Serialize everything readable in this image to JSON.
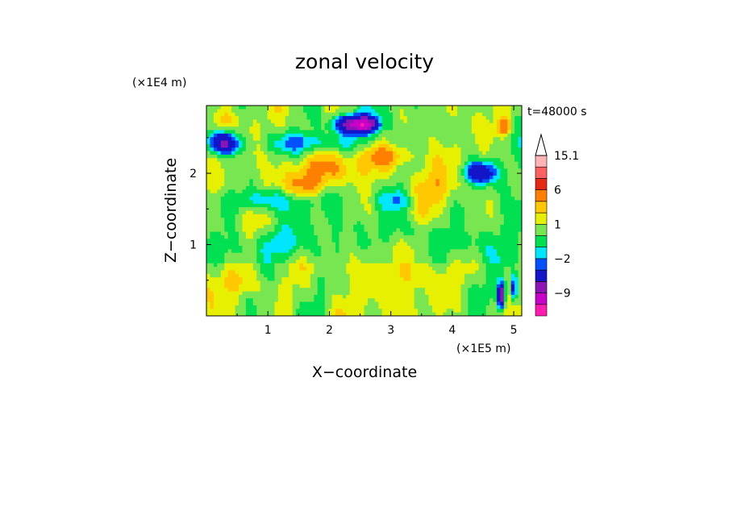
{
  "chart_data": {
    "type": "heatmap",
    "title": "zonal velocity",
    "xlabel": "X−coordinate",
    "ylabel": "Z−coordinate",
    "x_unit_label": "(×1E5 m)",
    "y_unit_label": "(×1E4 m)",
    "time_label": "t=48000 s",
    "xlim": [
      0,
      5.13
    ],
    "ylim": [
      0,
      2.95
    ],
    "x_ticks": [
      "1",
      "2",
      "3",
      "4",
      "5"
    ],
    "x_tick_values": [
      1,
      2,
      3,
      4,
      5
    ],
    "y_ticks": [
      "1",
      "2"
    ],
    "y_tick_values": [
      1,
      2
    ],
    "colorbar": {
      "levels": [
        -15,
        -12,
        -9,
        -6,
        -3,
        -2,
        -1,
        0,
        1,
        2,
        3,
        6,
        9,
        12,
        15.1
      ],
      "labels": [
        {
          "text": "15.1",
          "value": 15.1
        },
        {
          "text": "6",
          "value": 6
        },
        {
          "text": "1",
          "value": 1
        },
        {
          "text": "−2",
          "value": -2
        },
        {
          "text": "−9",
          "value": -9
        }
      ],
      "colors": [
        "#ff1ab0",
        "#c800c8",
        "#8c14b4",
        "#1414c8",
        "#0050ff",
        "#00e6ff",
        "#00e050",
        "#78e650",
        "#e6f000",
        "#ffc800",
        "#ff8000",
        "#e62814",
        "#ff6060",
        "#ffb4b4"
      ],
      "extend": "max"
    }
  }
}
